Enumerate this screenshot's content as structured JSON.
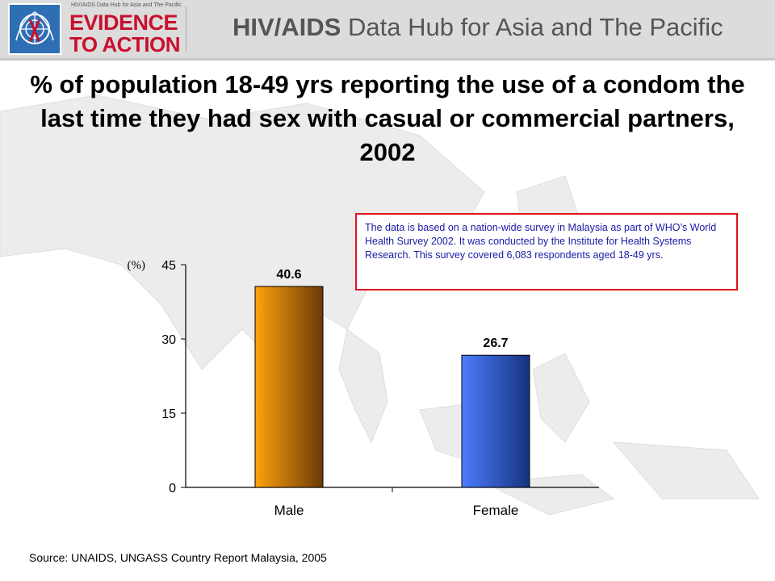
{
  "header": {
    "logo_small_text": "HIV/AIDS Data Hub for Asia and The Pacific",
    "logo_line1": "EVIDENCE",
    "logo_line2": "TO ACTION",
    "site_title_bold": "HIV/AIDS",
    "site_title_rest": " Data Hub for Asia and The Pacific"
  },
  "slide": {
    "title": "% of population 18-49 yrs reporting the use of a condom the last time they had sex with casual or commercial partners, 2002",
    "note": "The data is based on a nation-wide survey in Malaysia as part of WHO’s World Health Survey 2002. It was conducted by the Institute for Health Systems Research. This survey covered 6,083 respondents aged 18-49 yrs.",
    "source": "Source: UNAIDS, UNGASS Country Report Malaysia, 2005"
  },
  "chart_data": {
    "type": "bar",
    "categories": [
      "Male",
      "Female"
    ],
    "values": [
      40.6,
      26.7
    ],
    "value_labels": [
      "40.6",
      "26.7"
    ],
    "ylabel": "(%)",
    "yticks": [
      0,
      15,
      30,
      45
    ],
    "ylim": [
      0,
      45
    ],
    "grid": false,
    "legend": "none",
    "colors": {
      "Male": [
        "#ffa20a",
        "#6b3a08"
      ],
      "Female": [
        "#4d7dff",
        "#15337d"
      ]
    }
  }
}
